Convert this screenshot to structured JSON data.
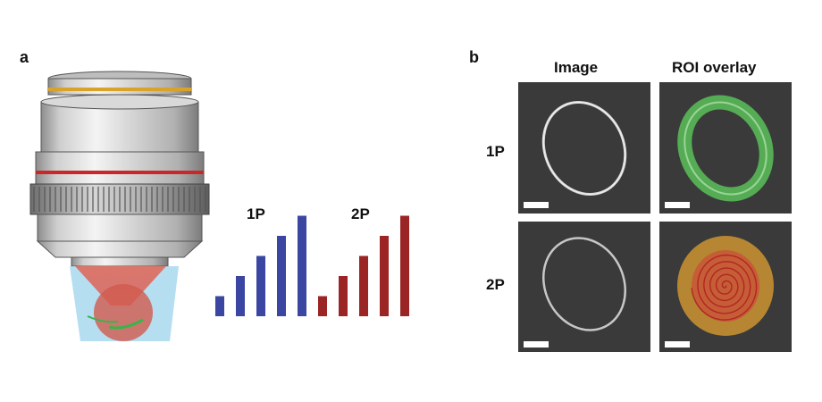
{
  "panel_a": {
    "letter": "a",
    "objective_icon": "microscope-objective-icon",
    "bar_groups": [
      {
        "label": "1P",
        "color": "#3a46a2",
        "values": [
          1,
          2,
          3,
          4,
          5
        ]
      },
      {
        "label": "2P",
        "color": "#9b2424",
        "values": [
          1,
          2,
          3,
          4,
          5
        ]
      }
    ]
  },
  "panel_b": {
    "letter": "b",
    "columns": [
      "Image",
      "ROI overlay"
    ],
    "rows": [
      "1P",
      "2P"
    ],
    "overlay_colors": {
      "green_roi": "#5fd35f",
      "orange_roi": "#e0a030",
      "red_spiral": "#d23c3c"
    }
  }
}
